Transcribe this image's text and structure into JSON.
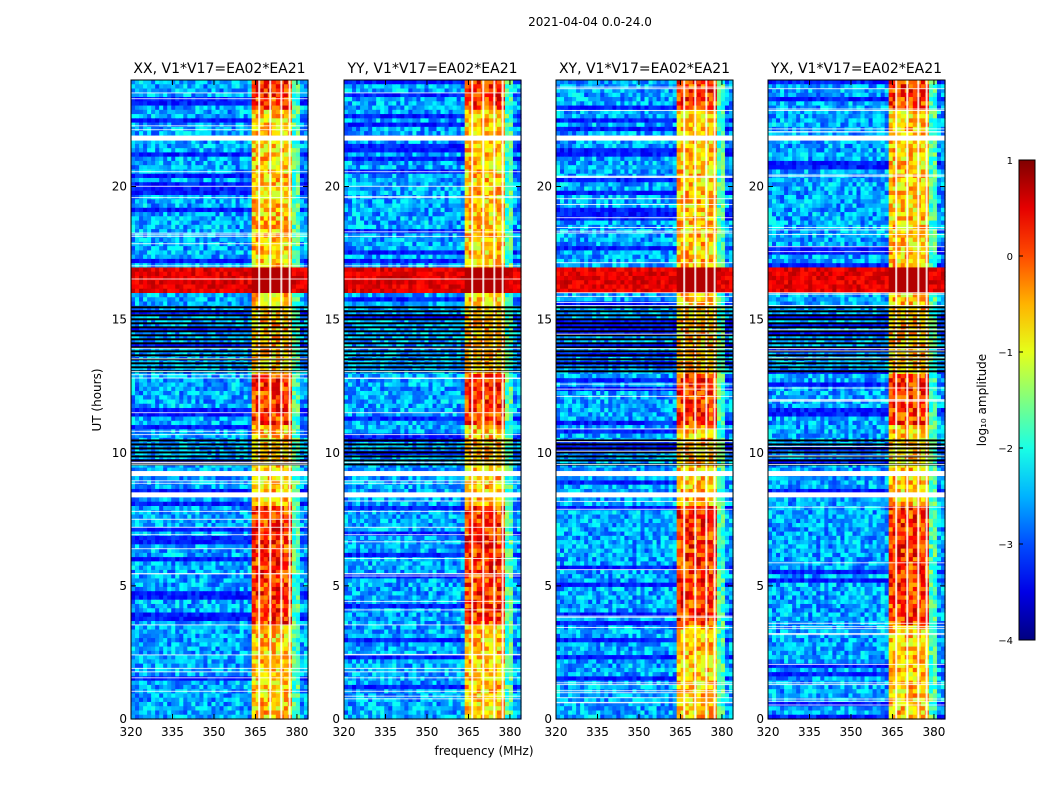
{
  "chart_data": {
    "type": "heatmap",
    "suptitle": "2021-04-04 0.0-24.0",
    "xlabel": "frequency (MHz)",
    "ylabel": "UT (hours)",
    "xlim": [
      320,
      384
    ],
    "ylim": [
      0,
      24
    ],
    "xticks": [
      320,
      335,
      350,
      365,
      380
    ],
    "yticks": [
      0,
      5,
      10,
      15,
      20
    ],
    "panels": [
      {
        "title": "XX, V1*V17=EA02*EA21",
        "polarization": "XX"
      },
      {
        "title": "YY, V1*V17=EA02*EA21",
        "polarization": "YY"
      },
      {
        "title": "XY, V1*V17=EA02*EA21",
        "polarization": "XY"
      },
      {
        "title": "YX, V1*V17=EA02*EA21",
        "polarization": "YX"
      }
    ],
    "colorbar": {
      "label": "log₁₀ amplitude",
      "range": [
        -4,
        1
      ],
      "ticks": [
        1,
        0,
        -1,
        -2,
        -3,
        -4
      ],
      "tick_labels": [
        "1",
        "0",
        "−1",
        "−2",
        "−3",
        "−4"
      ],
      "colormap": "jet"
    },
    "features": {
      "bright_band_mhz": [
        364,
        378
      ],
      "strong_rfi_ut_hours": [
        16.0,
        17.0
      ],
      "flagged_blocks_ut_hours": [
        [
          13.0,
          15.5
        ],
        [
          9.5,
          10.5
        ]
      ],
      "blank_rows_ut_hours": [
        8.4,
        9.2,
        21.8
      ]
    }
  }
}
